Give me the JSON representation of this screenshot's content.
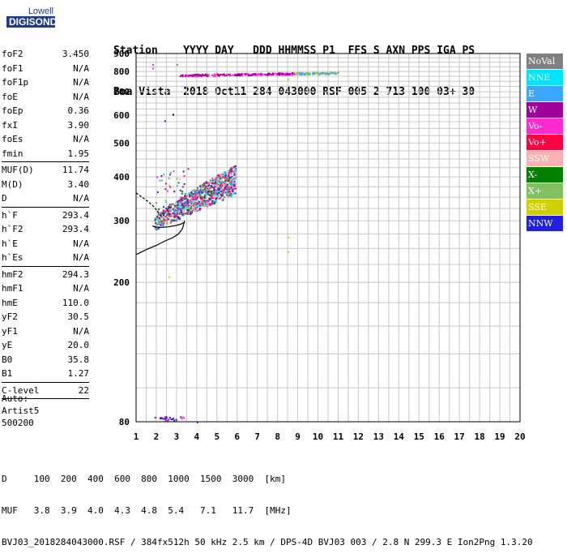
{
  "logo": {
    "line1": "Lowell",
    "line2": "DIGISONDE"
  },
  "header": {
    "line1": "Station    YYYY DAY   DDD HHMMSS P1  FFS S AXN PPS IGA PS",
    "line2": "Boa Vista  2018 Oct11 284 043000 RSF 005 2 713 100 03+ 30"
  },
  "params": [
    {
      "k": "foF2",
      "v": "3.450"
    },
    {
      "k": "foF1",
      "v": "N/A"
    },
    {
      "k": "foF1p",
      "v": "N/A"
    },
    {
      "k": "foE",
      "v": "N/A"
    },
    {
      "k": "foEp",
      "v": "0.36"
    },
    {
      "k": "fxI",
      "v": "3.90"
    },
    {
      "k": "foEs",
      "v": "N/A"
    },
    {
      "k": "fmin",
      "v": "1.95"
    },
    {
      "sep": true
    },
    {
      "k": "MUF(D)",
      "v": "11.74"
    },
    {
      "k": "M(D)",
      "v": "3.40"
    },
    {
      "k": "D",
      "v": "N/A"
    },
    {
      "sep": true
    },
    {
      "k": "h`F",
      "v": "293.4"
    },
    {
      "k": "h`F2",
      "v": "293.4"
    },
    {
      "k": "h`E",
      "v": "N/A"
    },
    {
      "k": "h`Es",
      "v": "N/A"
    },
    {
      "sep": true
    },
    {
      "k": "hmF2",
      "v": "294.3"
    },
    {
      "k": "hmF1",
      "v": "N/A"
    },
    {
      "k": "hmE",
      "v": "110.0"
    },
    {
      "k": "yF2",
      "v": "30.5"
    },
    {
      "k": "yF1",
      "v": "N/A"
    },
    {
      "k": "yE",
      "v": "20.0"
    },
    {
      "k": "B0",
      "v": "35.8"
    },
    {
      "k": "B1",
      "v": "1.27"
    },
    {
      "sep": true
    },
    {
      "k": "C-level",
      "v": "22"
    },
    {
      "sep": true
    }
  ],
  "auto": {
    "line1": "Auto:",
    "line2": "Artist5",
    "line3": "500200"
  },
  "footer": {
    "line1": "D     100  200  400  600  800  1000  1500  3000  [km]",
    "line2": "MUF   3.8  3.9  4.0  4.3  4.8  5.4   7.1   11.7  [MHz]",
    "line3": "BVJ03_2018284043000.RSF / 384fx512h 50 kHz 2.5 km / DPS-4D BVJ03 003 / 2.8 N 299.3 E Ion2Png 1.3.20"
  },
  "legend": [
    {
      "label": "NoVal",
      "color": "#808080"
    },
    {
      "label": "NNE",
      "color": "#00e5ff"
    },
    {
      "label": "E",
      "color": "#3aa8ff"
    },
    {
      "label": "W",
      "color": "#a0009a"
    },
    {
      "label": "Vo-",
      "color": "#ff2bd0"
    },
    {
      "label": "Vo+",
      "color": "#ff0040"
    },
    {
      "label": "SSW",
      "color": "#ffb0b0"
    },
    {
      "label": "X-",
      "color": "#008000"
    },
    {
      "label": "X+",
      "color": "#80c060"
    },
    {
      "label": "SSE",
      "color": "#d0d000"
    },
    {
      "label": "NNW",
      "color": "#2020e0"
    }
  ],
  "chart_data": {
    "type": "scatter",
    "xlabel": "",
    "ylabel": "",
    "xlim": [
      1,
      20
    ],
    "ylim": [
      80,
      900
    ],
    "xticks": [
      1,
      2,
      3,
      4,
      5,
      6,
      7,
      8,
      9,
      10,
      11,
      12,
      13,
      14,
      15,
      16,
      17,
      18,
      19,
      20
    ],
    "yticks": [
      80,
      200,
      300,
      400,
      500,
      600,
      700,
      800,
      900
    ],
    "grid": true,
    "log_scale_y": true,
    "profile": [
      [
        3.4,
        297
      ],
      [
        3.2,
        293
      ],
      [
        2.9,
        290
      ],
      [
        2.6,
        288
      ],
      [
        2.2,
        287
      ],
      [
        1.9,
        288
      ],
      [
        1.8,
        290
      ]
    ],
    "profile_lower": [
      [
        3.4,
        300
      ],
      [
        3.3,
        285
      ],
      [
        3.1,
        275
      ],
      [
        2.8,
        268
      ],
      [
        2.4,
        262
      ],
      [
        2.0,
        255
      ],
      [
        1.5,
        248
      ],
      [
        1.0,
        240
      ]
    ],
    "profile_upper": [
      [
        1.0,
        360
      ],
      [
        1.3,
        350
      ],
      [
        1.6,
        340
      ],
      [
        1.9,
        328
      ],
      [
        2.1,
        316
      ],
      [
        2.3,
        306
      ]
    ],
    "traces": [
      {
        "name": "F2",
        "x_start": 1.9,
        "x_end": 5.9,
        "h_start": 290,
        "h_end": 380
      },
      {
        "name": "multi-hop",
        "x_start": 3.1,
        "x_end": 11.0,
        "h_start": 782,
        "h_end": 795
      }
    ],
    "scattered_points": [
      {
        "x": 1.8,
        "y": 840,
        "c": "#ff2bd0"
      },
      {
        "x": 1.8,
        "y": 820,
        "c": "#ff2bd0"
      },
      {
        "x": 3.0,
        "y": 840,
        "c": "#808080"
      },
      {
        "x": 3.4,
        "y": 720,
        "c": "#2020e0"
      },
      {
        "x": 2.8,
        "y": 605,
        "c": "#000000"
      },
      {
        "x": 2.4,
        "y": 580,
        "c": "#2020e0"
      },
      {
        "x": 8.5,
        "y": 270,
        "c": "#d0d000"
      },
      {
        "x": 8.5,
        "y": 245,
        "c": "#d0d000"
      },
      {
        "x": 2.6,
        "y": 208,
        "c": "#d0d000"
      },
      {
        "x": 8.5,
        "y": 762,
        "c": "#d0d000"
      },
      {
        "x": 4.0,
        "y": 80,
        "c": "#2020e0"
      }
    ]
  }
}
